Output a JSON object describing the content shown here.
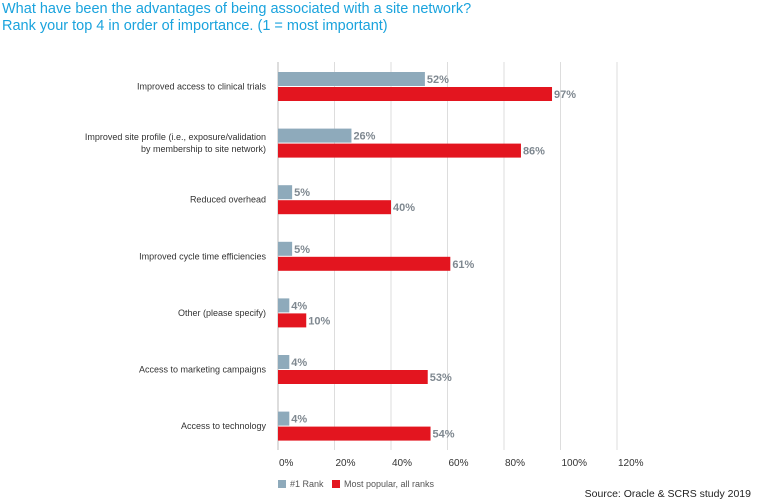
{
  "chart_data": {
    "type": "bar",
    "orientation": "horizontal",
    "title": "What have been the advantages of being associated with a site network?",
    "subtitle": "Rank your top 4 in order of importance.  (1 = most important)",
    "categories": [
      [
        "Improved access to clinical trials"
      ],
      [
        "Improved site profile (i.e., exposure/validation",
        "by membership to site network)"
      ],
      [
        "Reduced overhead"
      ],
      [
        "Improved cycle time efficiencies"
      ],
      [
        "Other (please specify)"
      ],
      [
        "Access to marketing campaigns"
      ],
      [
        "Access to technology"
      ]
    ],
    "series": [
      {
        "name": "#1 Rank",
        "color": "#8eaabb",
        "values": [
          52,
          26,
          5,
          5,
          4,
          4,
          4
        ]
      },
      {
        "name": "Most popular, all ranks",
        "color": "#e3151f",
        "values": [
          97,
          86,
          40,
          61,
          10,
          53,
          54
        ]
      }
    ],
    "xlim": [
      0,
      120
    ],
    "xticks": [
      "0%",
      "20%",
      "40%",
      "60%",
      "80%",
      "100%",
      "120%"
    ],
    "grid": true,
    "legend_position": "bottom-left",
    "source": "Source: Oracle & SCRS study 2019"
  }
}
